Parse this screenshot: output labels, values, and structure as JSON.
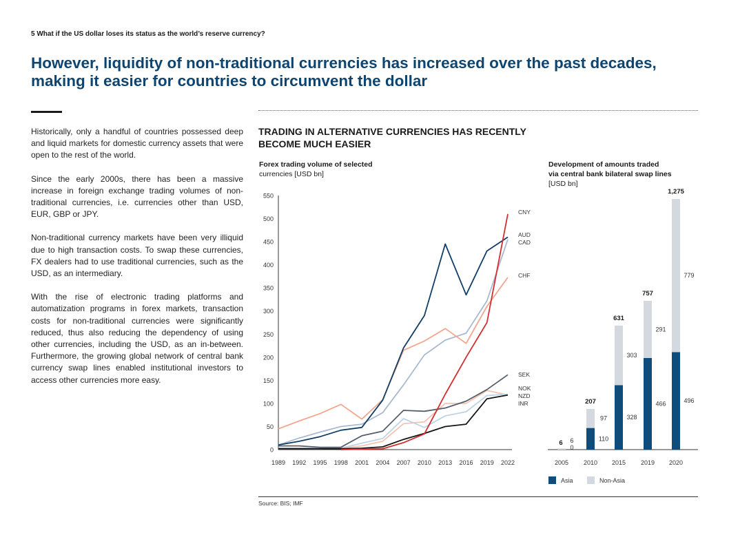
{
  "page": {
    "header": "5  What if the US dollar loses its status as the world’s reserve currency?",
    "headline": "However, liquidity of non-traditional currencies has increased over the past decades, making it easier for countries to circumvent the dollar",
    "body": [
      "Historically, only a handful of countries possessed deep and liquid markets for domestic currency assets that were open to the rest of the world.",
      "Since the early 2000s, there has been a massive increase in foreign exchange trading volumes of non-traditional currencies, i.e. currencies other than USD, EUR, GBP or JPY.",
      "Non-traditional currency markets have been very illiquid due to high transaction costs. To swap these currencies, FX dealers had to use traditional currencies, such as the USD, as an intermediary.",
      "With the rise of electronic trading platforms and automatization programs in forex markets, transaction costs for non-traditional currencies were significantly reduced, thus also reducing the dependency of using other currencies, including the USD, as an in-between. Furthermore, the growing global network of central bank currency swap lines enabled institutional investors to access other currencies more easy."
    ],
    "figure_title": "TRADING IN ALTERNATIVE CURRENCIES HAS RECENTLY BECOME MUCH EASIER",
    "line_subtitle_bold": "Forex trading volume of selected",
    "line_subtitle_rest": "currencies [USD bn]",
    "bar_subtitle_bold_1": "Development of amounts traded",
    "bar_subtitle_bold_2": "via central bank bilateral swap lines",
    "bar_subtitle_rest": "[USD bn]",
    "source": "Source: BIS; IMF"
  },
  "chart_data": [
    {
      "type": "line",
      "title": "Forex trading volume of selected currencies [USD bn]",
      "x": [
        "1989",
        "1992",
        "1995",
        "1998",
        "2001",
        "2004",
        "2007",
        "2010",
        "2013",
        "2016",
        "2019",
        "2022"
      ],
      "ylim": [
        0,
        550
      ],
      "yticks": [
        0,
        50,
        100,
        150,
        200,
        250,
        300,
        350,
        400,
        450,
        500,
        550
      ],
      "grid": false,
      "series": [
        {
          "name": "CNY",
          "color": "#d32f2f",
          "values": [
            null,
            null,
            null,
            0,
            1,
            2,
            15,
            34,
            120,
            200,
            275,
            510
          ]
        },
        {
          "name": "AUD",
          "color": "#0e3d66",
          "values": [
            10,
            18,
            28,
            42,
            48,
            107,
            220,
            290,
            445,
            335,
            430,
            460
          ]
        },
        {
          "name": "CAD",
          "color": "#a9b9cf",
          "values": [
            10,
            25,
            38,
            50,
            55,
            80,
            140,
            205,
            237,
            252,
            322,
            455
          ]
        },
        {
          "name": "CHF",
          "color": "#f2a68e",
          "values": [
            45,
            62,
            78,
            98,
            66,
            108,
            215,
            235,
            262,
            230,
            310,
            373
          ]
        },
        {
          "name": "SEK",
          "color": "#555f6b",
          "values": [
            8,
            8,
            5,
            5,
            30,
            40,
            85,
            83,
            90,
            105,
            130,
            162
          ]
        },
        {
          "name": "NOK",
          "color": "#bed3e6",
          "values": [
            3,
            3,
            3,
            3,
            14,
            24,
            67,
            48,
            73,
            82,
            117,
            120
          ]
        },
        {
          "name": "NZD",
          "color": "#f6c2b2",
          "values": [
            2,
            2,
            2,
            3,
            8,
            18,
            56,
            60,
            100,
            100,
            128,
            118
          ]
        },
        {
          "name": "INR",
          "color": "#141414",
          "values": [
            2,
            2,
            2,
            2,
            3,
            6,
            22,
            35,
            50,
            55,
            110,
            118
          ]
        }
      ]
    },
    {
      "type": "bar",
      "stacked": true,
      "title": "Development of amounts traded via central bank bilateral swap lines [USD bn]",
      "categories": [
        "2005",
        "2010",
        "2015",
        "2019",
        "2020"
      ],
      "series": [
        {
          "name": "Asia",
          "color": "#0e4c7c",
          "values": [
            0,
            110,
            328,
            466,
            496
          ]
        },
        {
          "name": "Non-Asia",
          "color": "#d3d9de",
          "values": [
            6,
            97,
            303,
            291,
            779
          ]
        }
      ],
      "totals": [
        6,
        207,
        631,
        757,
        1275
      ],
      "total_labels": [
        "6",
        "207",
        "631",
        "757",
        "1,275"
      ],
      "legend": "bottom-left"
    }
  ]
}
